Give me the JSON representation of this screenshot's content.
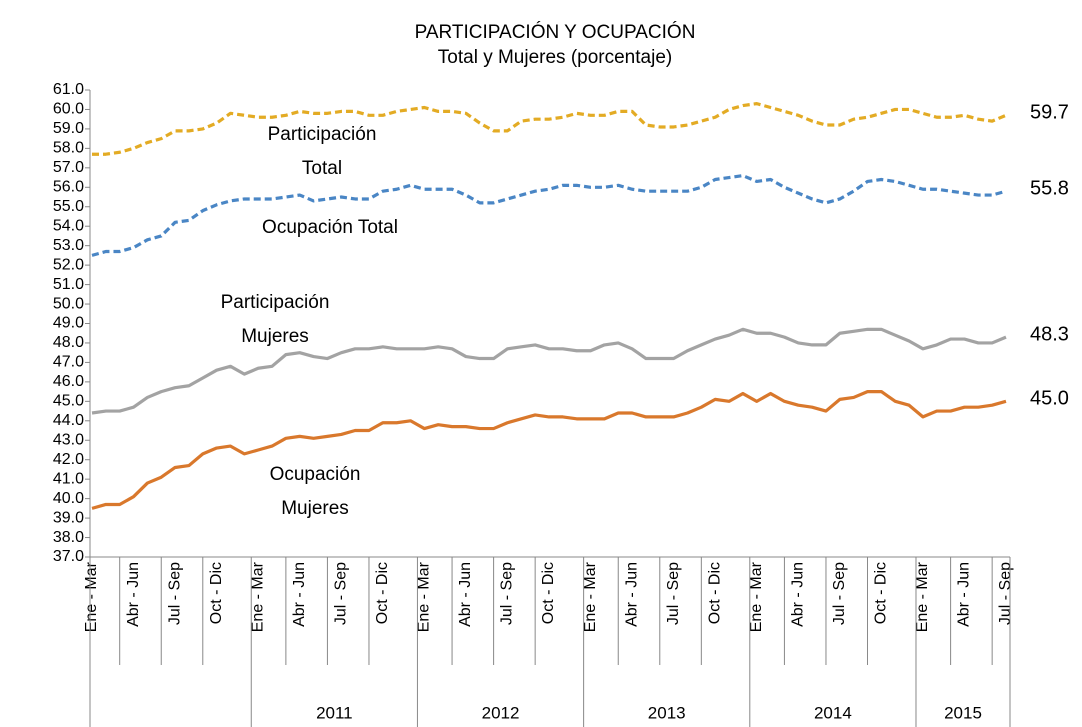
{
  "chart_data": {
    "type": "line",
    "title": "PARTICIPACIÓN Y OCUPACIÓN",
    "subtitle": "Total y Mujeres (porcentaje)",
    "categories": [
      "Ene - Mar",
      null,
      null,
      "Abr - Jun",
      null,
      null,
      "Jul - Sep",
      null,
      null,
      "Oct - Dic",
      null,
      null,
      "Ene - Mar",
      null,
      null,
      "Abr - Jun",
      null,
      null,
      "Jul - Sep",
      null,
      null,
      "Oct - Dic",
      null,
      null,
      "Ene - Mar",
      null,
      null,
      "Abr - Jun",
      null,
      null,
      "Jul - Sep",
      null,
      null,
      "Oct - Dic",
      null,
      null,
      "Ene - Mar",
      null,
      null,
      "Abr - Jun",
      null,
      null,
      "Jul - Sep",
      null,
      null,
      "Oct - Dic",
      null,
      null,
      "Ene - Mar",
      null,
      null,
      "Abr - Jun",
      null,
      null,
      "Jul - Sep",
      null,
      null,
      "Oct - Dic",
      null,
      null,
      "Ene - Mar",
      null,
      null,
      "Abr - Jun",
      null,
      null,
      "Jul - Sep"
    ],
    "groups": [
      null,
      "2011",
      "2012",
      "2013",
      "2014",
      "2015"
    ],
    "ylim": [
      37,
      61
    ],
    "yticks": [
      {
        "value": 37,
        "label": "37.0"
      },
      {
        "value": 38,
        "label": "38.0"
      },
      {
        "value": 39,
        "label": "39.0"
      },
      {
        "value": 40,
        "label": "40.0"
      },
      {
        "value": 41,
        "label": "41.0"
      },
      {
        "value": 42,
        "label": "42.0"
      },
      {
        "value": 43,
        "label": "43.0"
      },
      {
        "value": 44,
        "label": "44.0"
      },
      {
        "value": 45,
        "label": "45.0"
      },
      {
        "value": 46,
        "label": "46.0"
      },
      {
        "value": 47,
        "label": "47.0"
      },
      {
        "value": 48,
        "label": "48.0"
      },
      {
        "value": 49,
        "label": "49.0"
      },
      {
        "value": 50,
        "label": "50.0"
      },
      {
        "value": 51,
        "label": "51.0"
      },
      {
        "value": 52,
        "label": "52.0"
      },
      {
        "value": 53,
        "label": "53.0"
      },
      {
        "value": 54,
        "label": "54.0"
      },
      {
        "value": 55,
        "label": "55.0"
      },
      {
        "value": 56,
        "label": "56.0"
      },
      {
        "value": 57,
        "label": "57.0"
      },
      {
        "value": 58,
        "label": "58.0"
      },
      {
        "value": 59,
        "label": "59.0"
      },
      {
        "value": 60,
        "label": "60.0"
      },
      {
        "value": 61,
        "label": "61.0"
      }
    ],
    "series": [
      {
        "name": [
          "Participación",
          "Total"
        ],
        "color": "#e3ab24",
        "dashed": true,
        "end_label": "59.7",
        "values": [
          57.7,
          57.7,
          57.8,
          58.0,
          58.3,
          58.5,
          58.9,
          58.9,
          59.0,
          59.3,
          59.8,
          59.7,
          59.6,
          59.6,
          59.7,
          59.9,
          59.8,
          59.8,
          59.9,
          59.9,
          59.7,
          59.7,
          59.9,
          60.0,
          60.1,
          59.9,
          59.9,
          59.8,
          59.3,
          58.9,
          58.9,
          59.4,
          59.5,
          59.5,
          59.6,
          59.8,
          59.7,
          59.7,
          59.9,
          59.9,
          59.2,
          59.1,
          59.1,
          59.2,
          59.4,
          59.6,
          60.0,
          60.2,
          60.3,
          60.1,
          59.9,
          59.7,
          59.4,
          59.2,
          59.2,
          59.5,
          59.6,
          59.8,
          60.0,
          60.0,
          59.8,
          59.6,
          59.6,
          59.7,
          59.5,
          59.4,
          59.7
        ]
      },
      {
        "name": [
          "Ocupación Total"
        ],
        "color": "#4a86c5",
        "dashed": true,
        "end_label": "55.8",
        "values": [
          52.5,
          52.7,
          52.7,
          52.9,
          53.3,
          53.5,
          54.2,
          54.3,
          54.8,
          55.1,
          55.3,
          55.4,
          55.4,
          55.4,
          55.5,
          55.6,
          55.3,
          55.4,
          55.5,
          55.4,
          55.4,
          55.8,
          55.9,
          56.1,
          55.9,
          55.9,
          55.9,
          55.6,
          55.2,
          55.2,
          55.4,
          55.6,
          55.8,
          55.9,
          56.1,
          56.1,
          56.0,
          56.0,
          56.1,
          55.9,
          55.8,
          55.8,
          55.8,
          55.8,
          56.0,
          56.4,
          56.5,
          56.6,
          56.3,
          56.4,
          56.0,
          55.7,
          55.4,
          55.2,
          55.4,
          55.8,
          56.3,
          56.4,
          56.3,
          56.1,
          55.9,
          55.9,
          55.8,
          55.7,
          55.6,
          55.6,
          55.8
        ]
      },
      {
        "name": [
          "Participación",
          "Mujeres"
        ],
        "color": "#a3a3a3",
        "dashed": false,
        "end_label": "48.3",
        "values": [
          44.4,
          44.5,
          44.5,
          44.7,
          45.2,
          45.5,
          45.7,
          45.8,
          46.2,
          46.6,
          46.8,
          46.4,
          46.7,
          46.8,
          47.4,
          47.5,
          47.3,
          47.2,
          47.5,
          47.7,
          47.7,
          47.8,
          47.7,
          47.7,
          47.7,
          47.8,
          47.7,
          47.3,
          47.2,
          47.2,
          47.7,
          47.8,
          47.9,
          47.7,
          47.7,
          47.6,
          47.6,
          47.9,
          48.0,
          47.7,
          47.2,
          47.2,
          47.2,
          47.6,
          47.9,
          48.2,
          48.4,
          48.7,
          48.5,
          48.5,
          48.3,
          48.0,
          47.9,
          47.9,
          48.5,
          48.6,
          48.7,
          48.7,
          48.4,
          48.1,
          47.7,
          47.9,
          48.2,
          48.2,
          48.0,
          48.0,
          48.3
        ]
      },
      {
        "name": [
          "Ocupación",
          "Mujeres"
        ],
        "color": "#d9782c",
        "dashed": false,
        "end_label": "45.0",
        "values": [
          39.5,
          39.7,
          39.7,
          40.1,
          40.8,
          41.1,
          41.6,
          41.7,
          42.3,
          42.6,
          42.7,
          42.3,
          42.5,
          42.7,
          43.1,
          43.2,
          43.1,
          43.2,
          43.3,
          43.5,
          43.5,
          43.9,
          43.9,
          44.0,
          43.6,
          43.8,
          43.7,
          43.7,
          43.6,
          43.6,
          43.9,
          44.1,
          44.3,
          44.2,
          44.2,
          44.1,
          44.1,
          44.1,
          44.4,
          44.4,
          44.2,
          44.2,
          44.2,
          44.4,
          44.7,
          45.1,
          45.0,
          45.4,
          45.0,
          45.4,
          45.0,
          44.8,
          44.7,
          44.5,
          45.1,
          45.2,
          45.5,
          45.5,
          45.0,
          44.8,
          44.2,
          44.5,
          44.5,
          44.7,
          44.7,
          44.8,
          45.0
        ]
      }
    ]
  }
}
